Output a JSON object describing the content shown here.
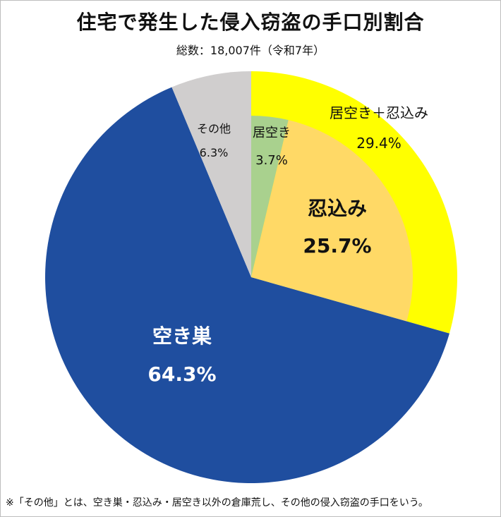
{
  "title": "住宅で発生した侵入窃盗の手口別割合",
  "subtitle": "総数：18,007件（令和7年）",
  "footnote": "※「その他」とは、空き巣・忍込み・居空き以外の倉庫荒し、その他の侵入窃盗の手口をいう。",
  "chart_data": {
    "type": "pie",
    "total": "18,007件",
    "outer": [
      {
        "name": "居空き＋忍込み",
        "value": 29.4,
        "label": "29.4%",
        "color": "#ffff00"
      },
      {
        "name": "空き巣",
        "value": 64.3,
        "label": "64.3%",
        "color": "#1f4e9f"
      },
      {
        "name": "その他",
        "value": 6.3,
        "label": "6.3%",
        "color": "#d0cece"
      }
    ],
    "inner": [
      {
        "name": "居空き",
        "value": 3.7,
        "label": "3.7%",
        "color": "#a9d18e"
      },
      {
        "name": "忍込み",
        "value": 25.7,
        "label": "25.7%",
        "color": "#ffd966"
      }
    ]
  }
}
